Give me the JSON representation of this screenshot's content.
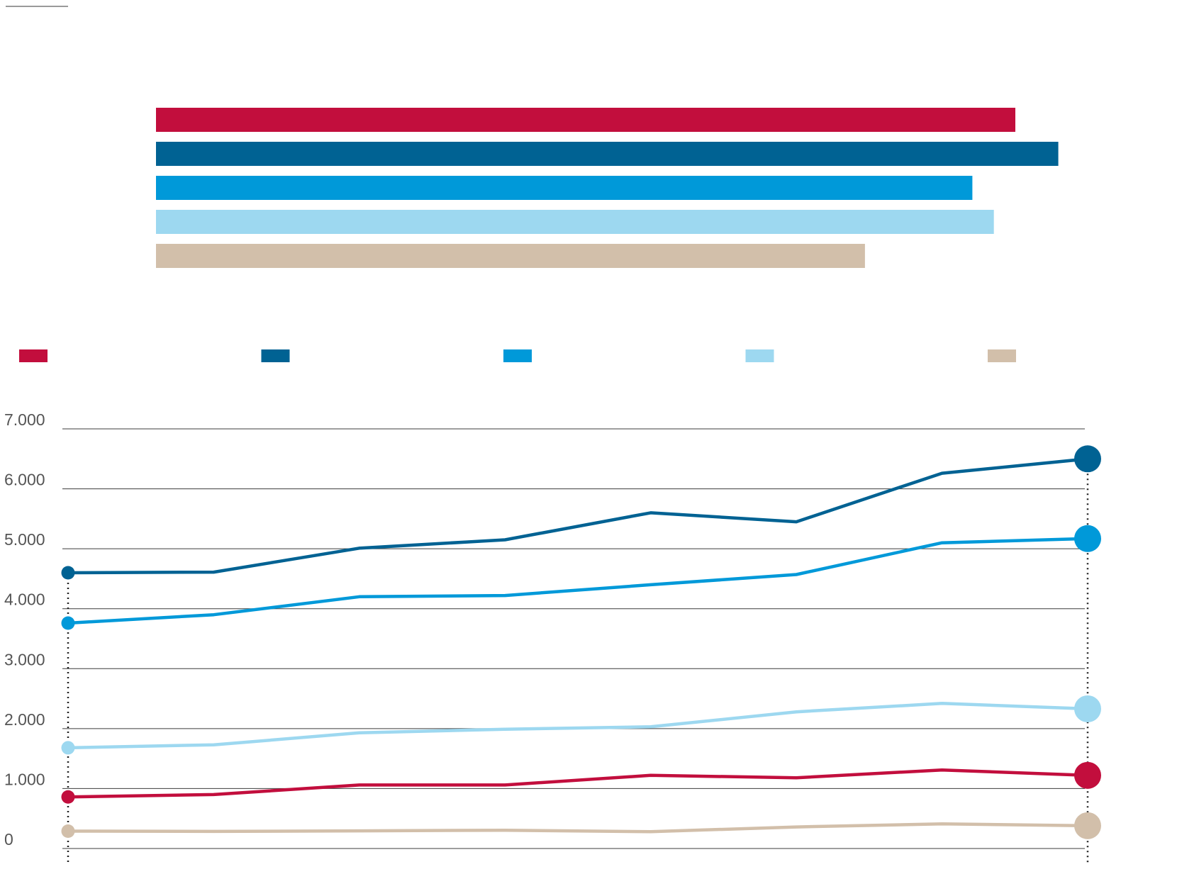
{
  "chart_data": [
    {
      "type": "bar",
      "orientation": "horizontal",
      "series": [
        {
          "name": "",
          "value": 1.0,
          "color": "#c20e3d"
        },
        {
          "name": "",
          "value": 1.05,
          "color": "#006293"
        },
        {
          "name": "",
          "value": 0.95,
          "color": "#0099d9"
        },
        {
          "name": "",
          "value": 0.975,
          "color": "#9dd8f0"
        },
        {
          "name": "",
          "value": 0.825,
          "color": "#d2bfaa"
        }
      ],
      "legend": {
        "position": "bottom",
        "labels": [
          "",
          "",
          "",
          "",
          ""
        ]
      }
    },
    {
      "type": "line",
      "x": [
        0,
        1,
        2,
        3,
        4,
        5,
        6,
        7
      ],
      "ylim": [
        0,
        7000
      ],
      "yticks": [
        0,
        1000,
        2000,
        3000,
        4000,
        5000,
        6000,
        7000
      ],
      "ytick_labels": [
        "0",
        "1.000",
        "2.000",
        "3.000",
        "4.000",
        "5.000",
        "6.000",
        "7.000"
      ],
      "grid": "horizontal",
      "series": [
        {
          "color": "#006293",
          "values": [
            4600,
            4610,
            5010,
            5150,
            5600,
            5450,
            6260,
            6500
          ]
        },
        {
          "color": "#0099d9",
          "values": [
            3760,
            3900,
            4200,
            4220,
            4400,
            4570,
            5100,
            5170
          ]
        },
        {
          "color": "#9dd8f0",
          "values": [
            1680,
            1730,
            1930,
            1990,
            2030,
            2280,
            2420,
            2330
          ]
        },
        {
          "color": "#c20e3d",
          "values": [
            860,
            900,
            1060,
            1060,
            1220,
            1180,
            1310,
            1220
          ]
        },
        {
          "color": "#d2bfaa",
          "values": [
            290,
            285,
            295,
            305,
            280,
            360,
            410,
            380
          ]
        }
      ]
    }
  ]
}
